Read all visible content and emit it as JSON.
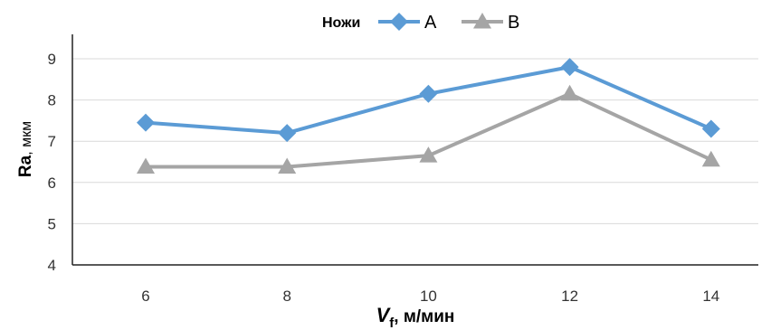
{
  "chart_data": {
    "type": "line",
    "legend_title": "Ножи",
    "legend_position": "top-center",
    "x": [
      6,
      8,
      10,
      12,
      14
    ],
    "x_ticks": [
      "6",
      "8",
      "10",
      "12",
      "14"
    ],
    "y_ticks": [
      "4",
      "5",
      "6",
      "7",
      "8",
      "9"
    ],
    "ylim": [
      4,
      9.5
    ],
    "grid": true,
    "xlabel": {
      "main": "V",
      "sub": "f",
      "rest": ", м/мин"
    },
    "ylabel": {
      "main": "Ra",
      "rest": ", мкм"
    },
    "series": [
      {
        "name": "A",
        "color": "#5b9bd5",
        "marker": "diamond",
        "values": [
          7.45,
          7.2,
          8.15,
          8.8,
          7.3
        ]
      },
      {
        "name": "B",
        "color": "#a5a5a5",
        "marker": "triangle",
        "values": [
          6.38,
          6.38,
          6.65,
          8.15,
          6.55
        ]
      }
    ]
  }
}
